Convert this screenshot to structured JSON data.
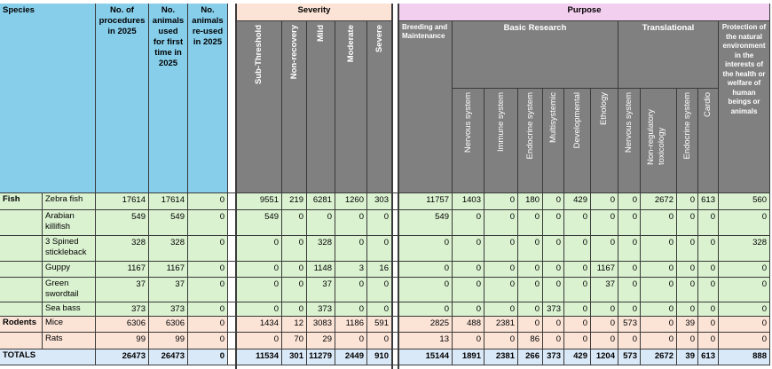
{
  "headers": {
    "species": "Species",
    "procedures": "No. of procedures in 2025",
    "first_time": "No. animals used for first time in 2025",
    "reused": "No. animals re-used in 2025",
    "severity": "Severity",
    "purpose": "Purpose",
    "sub_threshold": "Sub-Threshold",
    "non_recovery": "Non-recovery",
    "mild": "Mild",
    "moderate": "Moderate",
    "severe": "Severe",
    "breeding": "Breeding and Maintenance",
    "basic_research": "Basic Research",
    "translational": "Translational",
    "protection": "Protection of the natural environment in the interests of the health or welfare of human beings or animals",
    "nervous": "Nervous system",
    "immune": "Immune system",
    "endocrine": "Endocrine system",
    "multisystemic": "Multisystemic",
    "developmental": "Developmental",
    "ethology": "Ethology",
    "t_nervous": "Nervous system",
    "t_nonreg": "Non-regulatory toxicology",
    "t_endocrine": "Endocrine system",
    "t_cardio": "Cardio"
  },
  "groups": {
    "fish": "Fish",
    "rodents": "Rodents",
    "totals": "TOTALS"
  },
  "rows": [
    {
      "species": "Zebra fish",
      "procedures": "17614",
      "first": "17614",
      "reused": "0",
      "sub": "9551",
      "nonrec": "219",
      "mild": "6281",
      "mod": "1260",
      "sev": "303",
      "breed": "11757",
      "nerv": "1403",
      "imm": "0",
      "endo": "180",
      "multi": "0",
      "dev": "429",
      "eth": "0",
      "tnerv": "0",
      "tnonreg": "2672",
      "tendo": "0",
      "cardio": "613",
      "prot": "560"
    },
    {
      "species": "Arabian killifish",
      "procedures": "549",
      "first": "549",
      "reused": "0",
      "sub": "549",
      "nonrec": "0",
      "mild": "0",
      "mod": "0",
      "sev": "0",
      "breed": "549",
      "nerv": "0",
      "imm": "0",
      "endo": "0",
      "multi": "0",
      "dev": "0",
      "eth": "0",
      "tnerv": "0",
      "tnonreg": "0",
      "tendo": "0",
      "cardio": "0",
      "prot": "0"
    },
    {
      "species": "3 Spined stickleback",
      "procedures": "328",
      "first": "328",
      "reused": "0",
      "sub": "0",
      "nonrec": "0",
      "mild": "328",
      "mod": "0",
      "sev": "0",
      "breed": "0",
      "nerv": "0",
      "imm": "0",
      "endo": "0",
      "multi": "0",
      "dev": "0",
      "eth": "0",
      "tnerv": "0",
      "tnonreg": "0",
      "tendo": "0",
      "cardio": "0",
      "prot": "328"
    },
    {
      "species": "Guppy",
      "procedures": "1167",
      "first": "1167",
      "reused": "0",
      "sub": "0",
      "nonrec": "0",
      "mild": "1148",
      "mod": "3",
      "sev": "16",
      "breed": "0",
      "nerv": "0",
      "imm": "0",
      "endo": "0",
      "multi": "0",
      "dev": "0",
      "eth": "1167",
      "tnerv": "0",
      "tnonreg": "0",
      "tendo": "0",
      "cardio": "0",
      "prot": "0"
    },
    {
      "species": "Green swordtail",
      "procedures": "37",
      "first": "37",
      "reused": "0",
      "sub": "0",
      "nonrec": "0",
      "mild": "37",
      "mod": "0",
      "sev": "0",
      "breed": "0",
      "nerv": "0",
      "imm": "0",
      "endo": "0",
      "multi": "0",
      "dev": "0",
      "eth": "37",
      "tnerv": "0",
      "tnonreg": "0",
      "tendo": "0",
      "cardio": "0",
      "prot": "0"
    },
    {
      "species": "Sea bass",
      "procedures": "373",
      "first": "373",
      "reused": "0",
      "sub": "0",
      "nonrec": "0",
      "mild": "373",
      "mod": "0",
      "sev": "0",
      "breed": "0",
      "nerv": "0",
      "imm": "0",
      "endo": "0",
      "multi": "373",
      "dev": "0",
      "eth": "0",
      "tnerv": "0",
      "tnonreg": "0",
      "tendo": "0",
      "cardio": "0",
      "prot": "0"
    },
    {
      "species": "Mice",
      "procedures": "6306",
      "first": "6306",
      "reused": "0",
      "sub": "1434",
      "nonrec": "12",
      "mild": "3083",
      "mod": "1186",
      "sev": "591",
      "breed": "2825",
      "nerv": "488",
      "imm": "2381",
      "endo": "0",
      "multi": "0",
      "dev": "0",
      "eth": "0",
      "tnerv": "573",
      "tnonreg": "0",
      "tendo": "39",
      "cardio": "0",
      "prot": "0"
    },
    {
      "species": "Rats",
      "procedures": "99",
      "first": "99",
      "reused": "0",
      "sub": "0",
      "nonrec": "70",
      "mild": "29",
      "mod": "0",
      "sev": "0",
      "breed": "13",
      "nerv": "0",
      "imm": "0",
      "endo": "86",
      "multi": "0",
      "dev": "0",
      "eth": "0",
      "tnerv": "0",
      "tnonreg": "0",
      "tendo": "0",
      "cardio": "0",
      "prot": "0"
    }
  ],
  "totals": {
    "procedures": "26473",
    "first": "26473",
    "reused": "0",
    "sub": "11534",
    "nonrec": "301",
    "mild": "11279",
    "mod": "2449",
    "sev": "910",
    "breed": "15144",
    "nerv": "1891",
    "imm": "2381",
    "endo": "266",
    "multi": "373",
    "dev": "429",
    "eth": "1204",
    "tnerv": "573",
    "tnonreg": "2672",
    "tendo": "39",
    "cardio": "613",
    "prot": "888"
  },
  "colors": {
    "header_blue": "#87ceeb",
    "header_grey": "#808080",
    "severity_header": "#fbe3d6",
    "purpose_header": "#f2ceef",
    "data_green": "#daf2d0",
    "rodent_pink": "#fbe3d6",
    "totals_blue": "#dae9f8"
  }
}
